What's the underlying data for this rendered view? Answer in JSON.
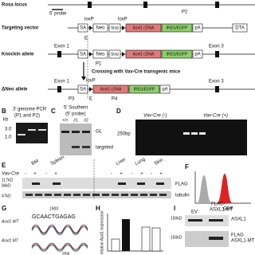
{
  "panel_a": {
    "rosa_locus": "Rosa locus",
    "probe": "5' probe",
    "p2": "P2",
    "targeting_vector": "Targeting vector",
    "loxp": "loxP",
    "sa": "SA",
    "neo": "Neo",
    "stop": "Stop",
    "cdna": "Asxl1 cDNA",
    "ires": "IRES/EGFP",
    "pa": "pA",
    "dta": "DTA",
    "knockin_allele": "Knockin allele",
    "exon1": "Exon 1",
    "exon3": "Exon 3",
    "e": "E",
    "p1": "P1",
    "crossing": "Crossing with Vav-Cre transgenic mice",
    "dneo_allele": "ΔNeo allele",
    "p3": "P3",
    "p4": "P4"
  },
  "panel_b": {
    "label": "B",
    "title": "3' genome PCR",
    "subtitle": "(P1 and P2)",
    "kb": "kb",
    "lanes": [
      "+/+",
      "#1",
      "#2"
    ],
    "sizes": [
      "3.0",
      "1.0"
    ]
  },
  "panel_c": {
    "label": "C",
    "title": "5' Southern",
    "subtitle": "(5' probe)",
    "lanes": [
      "+/+",
      "#1",
      "#2"
    ],
    "gl": "GL",
    "targeted": "targeted"
  },
  "panel_d": {
    "label": "D",
    "neg": "Vav-Cre (-)",
    "pos": "Vav-Cre (+)",
    "size": "250bp"
  },
  "panel_e": {
    "label": "E",
    "tissues": [
      "BM",
      "Spleen",
      "Liver",
      "Lung",
      "Skin"
    ],
    "vav": "Vav-Cre",
    "minus": "-",
    "plus": "+",
    "markers": [
      "117kD",
      "84kD",
      "47kD"
    ],
    "flag": "FLAG",
    "tubulin": "tubulin"
  },
  "panel_f": {
    "label": "F",
    "axis": "GFP"
  },
  "panel_g": {
    "label": "G",
    "wt": "Asxl1 WT",
    "mt": "Asxl1 MT",
    "position": "1900",
    "sequence": "GCAACTGAGAG",
    "stop": "stop"
  },
  "panel_h": {
    "label": "H",
    "ylabel": "relative Asxl1 expression"
  },
  "panel_i": {
    "label": "I",
    "ev": "EV",
    "flag_line1": "FLAG-",
    "flag_line2": "ASXL1-MT",
    "marker": "150kD",
    "asxl1": "ASXL1",
    "flag": "FLAG",
    "asxl1_mt": "ASXL1-MT"
  }
}
